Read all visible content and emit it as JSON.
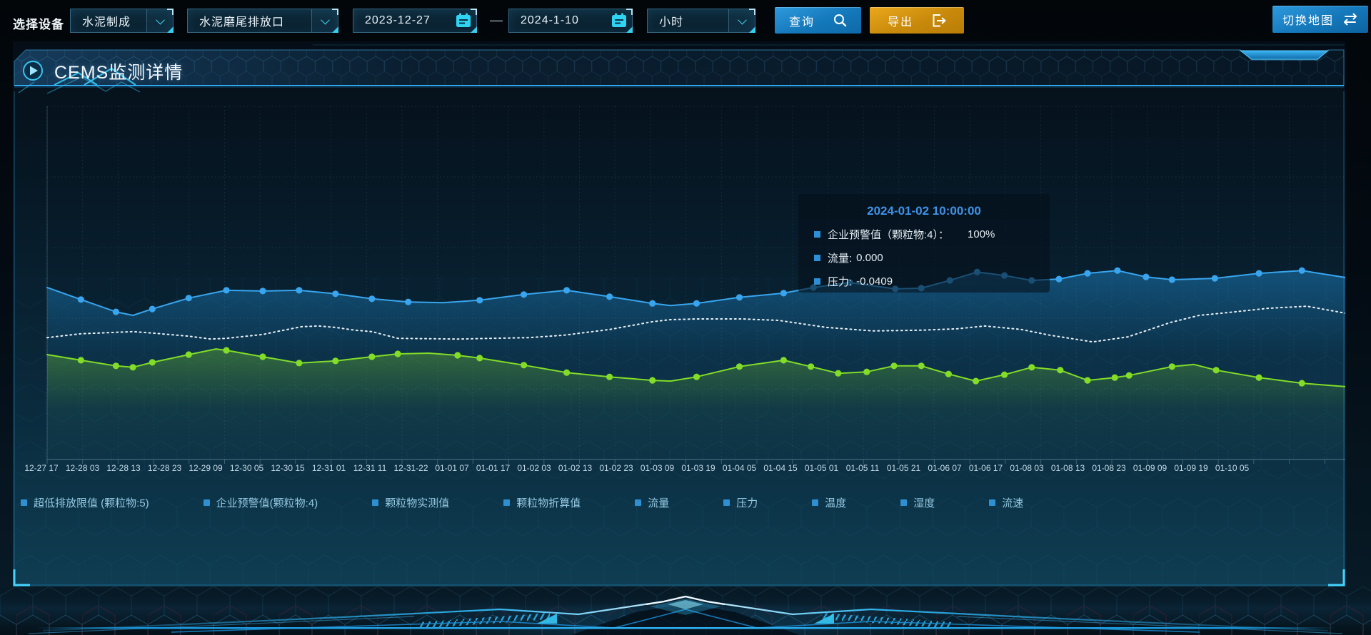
{
  "toolbar": {
    "label": "选择设备",
    "device_select": {
      "value": "水泥制成"
    },
    "outlet_select": {
      "value": "水泥磨尾排放口"
    },
    "date_start": "2023-12-27",
    "date_separator": "—",
    "date_end": "2024-1-10",
    "interval_select": {
      "value": "小时"
    },
    "query_button": "查询",
    "export_button": "导出",
    "switch_map_button": "切换地图"
  },
  "panel": {
    "title": "CEMS监测详情"
  },
  "tooltip": {
    "title": "2024-01-02 10:00:00",
    "rows": [
      {
        "label": "企业预警值（颗粒物:4）：",
        "value": "100%",
        "wide": true
      },
      {
        "label": "流量:",
        "value": "0.000",
        "wide": false
      },
      {
        "label": "压力:",
        "value": "-0.0409",
        "wide": false
      }
    ]
  },
  "legend": [
    "超低排放限值 (颗粒物:5)",
    "企业预警值(颗粒物:4)",
    "颗粒物实测值",
    "颗粒物折算值",
    "流量",
    "压力",
    "温度",
    "湿度",
    "流速"
  ],
  "icons": {
    "query": "search-icon",
    "export": "export-icon",
    "switch_map": "swap-icon",
    "date": "calendar-icon",
    "select": "chevron-down-icon",
    "title": "play-icon"
  },
  "colors": {
    "accent": "#2fa8ee",
    "query_button": "#1b84c6",
    "export_button": "#d4920e",
    "series_blue": "#38a5ee",
    "series_white": "#e8f0f5",
    "series_green": "#82dc28"
  },
  "chart_data": {
    "type": "line",
    "title": "",
    "xlabel": "",
    "ylabel": "",
    "note": "y-axis has no visible tick labels; series values are percent of plot height (0=bottom,100=top)",
    "x_labels": [
      "12-27 17",
      "12-28 03",
      "12-28 13",
      "12-28 23",
      "12-29 09",
      "12-30 05",
      "12-30 15",
      "12-31 01",
      "12-31 11",
      "12-31-22",
      "01-01 07",
      "01-01 17",
      "01-02 03",
      "01-02 13",
      "01-02 23",
      "01-03 09",
      "01-03 19",
      "01-04 05",
      "01-04 15",
      "01-05 01",
      "01-05 11",
      "01-05 21",
      "01-06 07",
      "01-06 17",
      "01-08 03",
      "01-08 13",
      "01-08 23",
      "01-09 09",
      "01-09 19",
      "01-10 05"
    ],
    "series": [
      {
        "name": "企业预警值(颗粒物:4)",
        "color": "#38a5ee",
        "style": "solid",
        "markers": true,
        "area": true,
        "area_id": "gA",
        "marker_skip": [
          0,
          3,
          12,
          18,
          38
        ],
        "points": [
          [
            0,
            48.7
          ],
          [
            2.6,
            45.3
          ],
          [
            5.3,
            41.8
          ],
          [
            6.6,
            40.8
          ],
          [
            8.1,
            42.6
          ],
          [
            10.9,
            45.7
          ],
          [
            13.8,
            47.9
          ],
          [
            16.6,
            47.7
          ],
          [
            19.4,
            47.9
          ],
          [
            22.2,
            46.9
          ],
          [
            25.0,
            45.5
          ],
          [
            27.8,
            44.6
          ],
          [
            30.5,
            44.4
          ],
          [
            33.3,
            45.1
          ],
          [
            36.7,
            46.7
          ],
          [
            40.0,
            47.9
          ],
          [
            43.3,
            46.1
          ],
          [
            46.6,
            44.2
          ],
          [
            48.0,
            43.6
          ],
          [
            50.0,
            44.2
          ],
          [
            53.3,
            45.9
          ],
          [
            56.7,
            47.1
          ],
          [
            59.0,
            48.7
          ],
          [
            61.8,
            50.1
          ],
          [
            65.3,
            48.3
          ],
          [
            67.3,
            48.5
          ],
          [
            69.5,
            50.7
          ],
          [
            71.6,
            53.1
          ],
          [
            73.7,
            52.1
          ],
          [
            75.8,
            50.7
          ],
          [
            77.9,
            51.1
          ],
          [
            80.1,
            52.7
          ],
          [
            82.4,
            53.5
          ],
          [
            84.6,
            51.7
          ],
          [
            86.6,
            50.9
          ],
          [
            89.9,
            51.3
          ],
          [
            93.3,
            52.7
          ],
          [
            96.6,
            53.5
          ],
          [
            100,
            51.5
          ]
        ]
      },
      {
        "name": "流量",
        "color": "#e8f0f5",
        "style": "dotted",
        "markers": false,
        "area": false,
        "area_id": "",
        "marker_skip": [],
        "points": [
          [
            0,
            34.5
          ],
          [
            2.6,
            35.6
          ],
          [
            5.3,
            36.0
          ],
          [
            6.6,
            36.2
          ],
          [
            8.1,
            35.8
          ],
          [
            10.9,
            34.9
          ],
          [
            12.6,
            34.1
          ],
          [
            13.8,
            34.3
          ],
          [
            16.6,
            35.4
          ],
          [
            18.2,
            36.6
          ],
          [
            19.6,
            37.6
          ],
          [
            20.9,
            37.8
          ],
          [
            22.2,
            37.4
          ],
          [
            23.7,
            36.6
          ],
          [
            25.0,
            36.2
          ],
          [
            27.0,
            34.3
          ],
          [
            31.6,
            34.1
          ],
          [
            37.1,
            34.5
          ],
          [
            39.8,
            35.2
          ],
          [
            43.3,
            36.8
          ],
          [
            46.6,
            39.0
          ],
          [
            48.0,
            39.6
          ],
          [
            50.0,
            39.8
          ],
          [
            53.5,
            39.8
          ],
          [
            56.3,
            39.4
          ],
          [
            60.0,
            37.4
          ],
          [
            63.6,
            36.4
          ],
          [
            67.3,
            36.6
          ],
          [
            70.0,
            37.0
          ],
          [
            72.2,
            37.8
          ],
          [
            75.0,
            36.8
          ],
          [
            77.2,
            35.2
          ],
          [
            80.5,
            33.3
          ],
          [
            83.2,
            34.7
          ],
          [
            86.5,
            38.8
          ],
          [
            88.7,
            40.8
          ],
          [
            90.9,
            41.6
          ],
          [
            94.0,
            42.8
          ],
          [
            97.0,
            43.4
          ],
          [
            100,
            41.4
          ]
        ]
      },
      {
        "name": "压力",
        "color": "#82dc28",
        "style": "solid",
        "markers": true,
        "area": true,
        "area_id": "gC",
        "marker_skip": [
          0,
          6,
          13,
          20,
          38,
          42
        ],
        "points": [
          [
            0,
            29.7
          ],
          [
            2.6,
            28.1
          ],
          [
            5.3,
            26.5
          ],
          [
            6.6,
            26.1
          ],
          [
            8.1,
            27.5
          ],
          [
            10.9,
            29.7
          ],
          [
            13.0,
            31.3
          ],
          [
            13.8,
            30.9
          ],
          [
            16.6,
            29.1
          ],
          [
            19.4,
            27.3
          ],
          [
            22.2,
            27.9
          ],
          [
            25.0,
            29.1
          ],
          [
            27.0,
            29.9
          ],
          [
            29.4,
            30.1
          ],
          [
            31.6,
            29.5
          ],
          [
            33.3,
            28.7
          ],
          [
            36.7,
            26.7
          ],
          [
            40.0,
            24.6
          ],
          [
            43.3,
            23.4
          ],
          [
            46.6,
            22.4
          ],
          [
            48.0,
            22.2
          ],
          [
            50.0,
            23.4
          ],
          [
            53.3,
            26.3
          ],
          [
            56.7,
            28.1
          ],
          [
            58.8,
            26.3
          ],
          [
            60.9,
            24.4
          ],
          [
            63.1,
            24.8
          ],
          [
            65.2,
            26.5
          ],
          [
            67.3,
            26.5
          ],
          [
            69.4,
            24.2
          ],
          [
            71.5,
            22.2
          ],
          [
            73.7,
            24.0
          ],
          [
            75.8,
            26.1
          ],
          [
            78.0,
            25.3
          ],
          [
            80.1,
            22.4
          ],
          [
            82.2,
            23.2
          ],
          [
            83.3,
            23.8
          ],
          [
            86.6,
            26.3
          ],
          [
            88.3,
            26.9
          ],
          [
            90.0,
            25.3
          ],
          [
            93.3,
            23.2
          ],
          [
            96.6,
            21.6
          ],
          [
            100,
            20.6
          ]
        ]
      }
    ]
  }
}
